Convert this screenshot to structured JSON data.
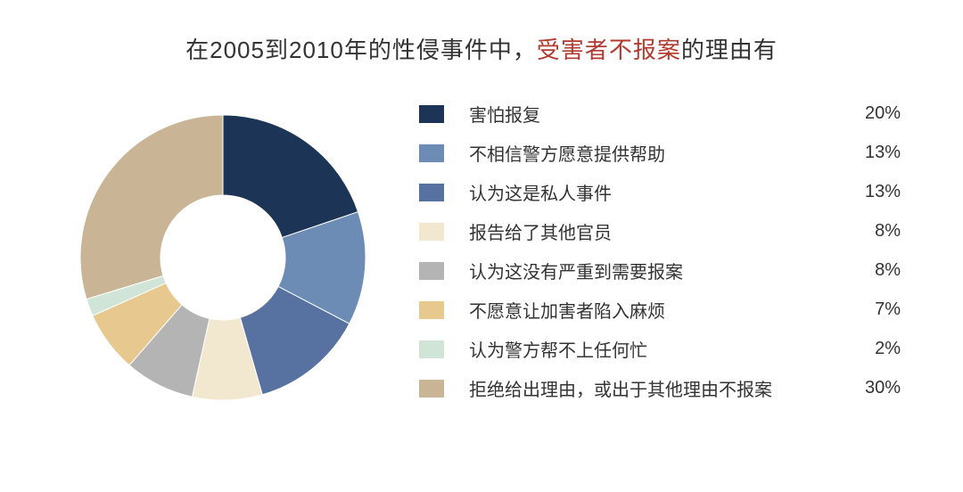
{
  "title": {
    "pre": "在2005到2010年的性侵事件中，",
    "highlight": "受害者不报案",
    "post": "的理由有",
    "fontsize": 26,
    "color": "#333333",
    "highlight_color": "#b23a2f"
  },
  "chart": {
    "type": "donut",
    "outer_radius": 160,
    "inner_radius": 70,
    "center_fill": "#ffffff",
    "start_angle": -90,
    "background_color": "#ffffff",
    "slices": [
      {
        "label": "害怕报复",
        "value": 20,
        "display": "20%",
        "color": "#1c3557"
      },
      {
        "label": "不相信警方愿意提供帮助",
        "value": 13,
        "display": "13%",
        "color": "#6c8cb5"
      },
      {
        "label": "认为这是私人事件",
        "value": 13,
        "display": "13%",
        "color": "#5772a0"
      },
      {
        "label": "报告给了其他官员",
        "value": 8,
        "display": "8%",
        "color": "#f2e7cf"
      },
      {
        "label": "认为这没有严重到需要报案",
        "value": 8,
        "display": "8%",
        "color": "#b4b4b4"
      },
      {
        "label": "不愿意让加害者陷入麻烦",
        "value": 7,
        "display": "7%",
        "color": "#e7c88f"
      },
      {
        "label": "认为警方帮不上任何忙",
        "value": 2,
        "display": "2%",
        "color": "#d0e5d7"
      },
      {
        "label": "拒绝给出理由，或出于其他理由不报案",
        "value": 30,
        "display": "30%",
        "color": "#c9b496"
      }
    ]
  },
  "legend": {
    "fontsize": 20,
    "label_color": "#333333",
    "swatch_width": 28,
    "swatch_height": 20
  }
}
